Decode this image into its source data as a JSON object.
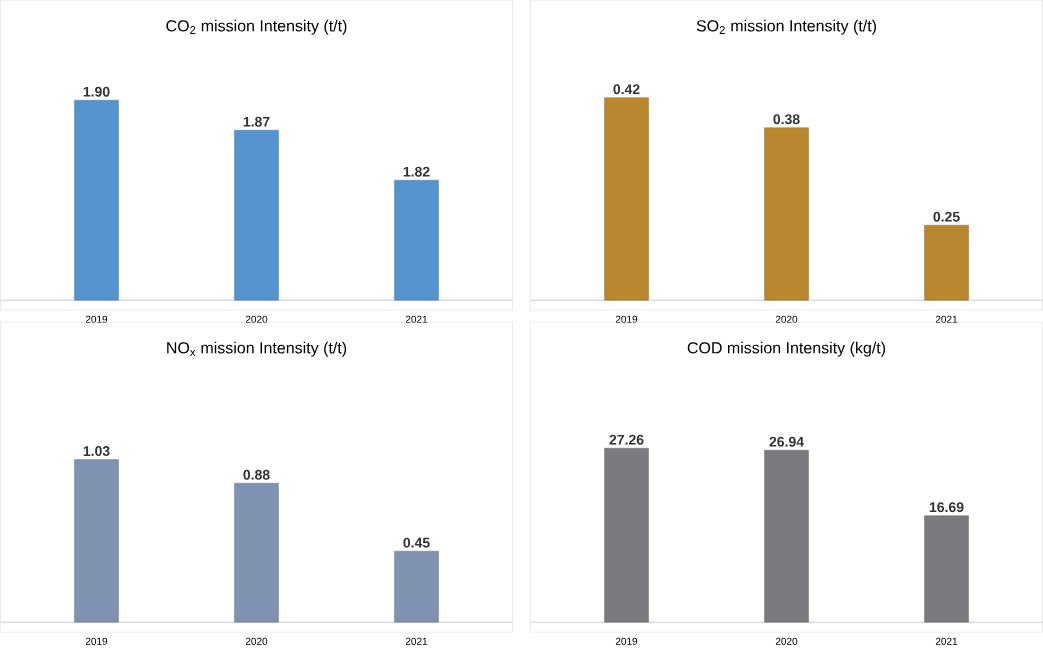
{
  "chart_data": [
    {
      "type": "bar",
      "title": "CO$_{2}$ mission Intensity (t/t)",
      "categories": [
        "2019",
        "2020",
        "2021"
      ],
      "values": [
        1.9,
        1.87,
        1.82
      ],
      "value_labels": [
        "1.90",
        "1.87",
        "1.82"
      ],
      "color": "#5593cf",
      "ylim": [
        1.7,
        2.0
      ],
      "tick_labels": "x"
    },
    {
      "type": "bar",
      "title": "SO$_{2}$ mission Intensity (t/t)",
      "categories": [
        "2019",
        "2020",
        "2021"
      ],
      "values": [
        0.42,
        0.38,
        0.25
      ],
      "value_labels": [
        "0.42",
        "0.38",
        "0.25"
      ],
      "color": "#b8862e",
      "ylim": [
        0.15,
        0.55
      ],
      "tick_labels": "x"
    },
    {
      "type": "bar",
      "title": "NO$_{x}$ mission Intensity (t/t)",
      "categories": [
        "2019",
        "2020",
        "2021"
      ],
      "values": [
        1.03,
        0.88,
        0.45
      ],
      "value_labels": [
        "1.03",
        "0.88",
        "0.45"
      ],
      "color": "#7f93b0",
      "ylim": [
        0,
        1.9
      ],
      "tick_labels": "x"
    },
    {
      "type": "bar",
      "title": "COD mission Intensity (kg/t)",
      "categories": [
        "2019",
        "2020",
        "2021"
      ],
      "values": [
        27.26,
        26.94,
        16.69
      ],
      "value_labels": [
        "27.26",
        "26.94",
        "16.69"
      ],
      "color": "#7b7b7f",
      "ylim": [
        0,
        47
      ],
      "tick_labels": "x"
    }
  ]
}
